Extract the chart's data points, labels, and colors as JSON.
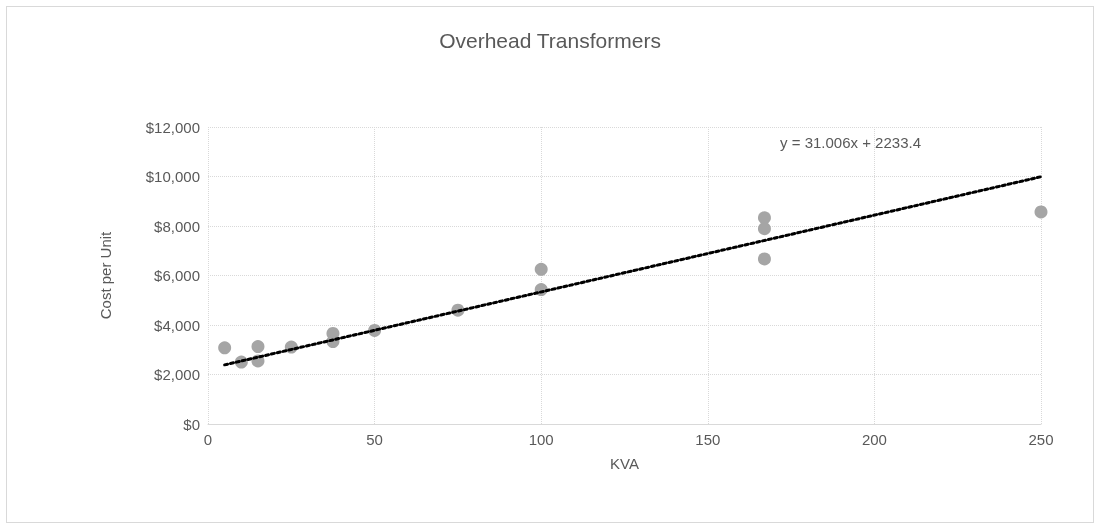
{
  "chart_data": {
    "type": "scatter",
    "title": "Overhead Transformers",
    "xlabel": "KVA",
    "ylabel": "Cost per Unit",
    "annotations": [
      "y = 31.006x + 2233.4"
    ],
    "series": [
      {
        "color": "#a5a5a5",
        "marker": "circle",
        "x": [
          5,
          10,
          15,
          15,
          25,
          37.5,
          37.5,
          50,
          75,
          100,
          100,
          167,
          167,
          167,
          250
        ],
        "values": [
          3080,
          2500,
          3130,
          2550,
          3110,
          3660,
          3330,
          3780,
          4600,
          6250,
          5430,
          8330,
          7890,
          6670,
          8570
        ]
      },
      {
        "type": "line",
        "color": "#000000",
        "marker": "none",
        "line_style": "dotted",
        "x": [
          5,
          250
        ],
        "values": [
          2390,
          9990
        ]
      }
    ],
    "xlim": [
      0,
      250
    ],
    "xticks": [
      0,
      50,
      100,
      150,
      200,
      250
    ],
    "ylim": [
      0,
      12000
    ],
    "yticks": [
      {
        "value": 0,
        "label": "$0"
      },
      {
        "value": 2000,
        "label": "$2,000"
      },
      {
        "value": 4000,
        "label": "$4,000"
      },
      {
        "value": 6000,
        "label": "$6,000"
      },
      {
        "value": 8000,
        "label": "$8,000"
      },
      {
        "value": 10000,
        "label": "$10,000"
      },
      {
        "value": 12000,
        "label": "$12,000"
      }
    ],
    "grid": true
  }
}
